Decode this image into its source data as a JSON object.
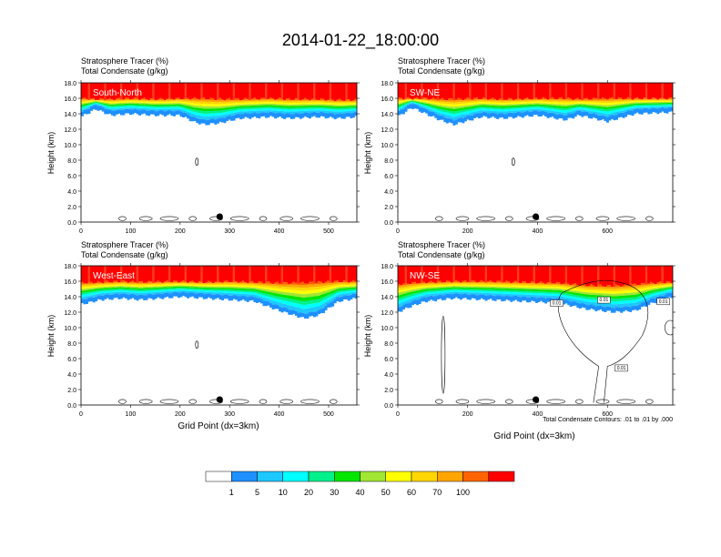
{
  "title": "2014-01-22_18:00:00",
  "field_label": "Stratosphere Tracer   (%)",
  "contour_label": "Total Condensate   (g/kg)",
  "ylabel": "Height (km)",
  "xlabel": "Grid Point (dx=3km)",
  "contour_note": "Total Condensate Contours: .01 to .01 by .000",
  "colorbar": {
    "colors": [
      "#ffffff",
      "#1e90ff",
      "#1ec8ff",
      "#00ffff",
      "#00f08c",
      "#00e600",
      "#a0e632",
      "#ffff00",
      "#ffd700",
      "#ffa500",
      "#ff6400",
      "#ff0000"
    ],
    "labels": [
      "1",
      "5",
      "10",
      "20",
      "30",
      "40",
      "50",
      "60",
      "70",
      "100"
    ]
  },
  "chart_data": [
    {
      "type": "heatmap",
      "panel": "South-North",
      "xlim": [
        0,
        557
      ],
      "ylim": [
        0,
        18
      ],
      "xticks": [
        0,
        100,
        200,
        300,
        400,
        500
      ],
      "yticks": [
        "0.0",
        "2.0",
        "4.0",
        "6.0",
        "8.0",
        "10.0",
        "12.0",
        "14.0",
        "16.0",
        "18.0"
      ],
      "profile": {
        "x": [
          0,
          30,
          60,
          100,
          150,
          200,
          230,
          250,
          280,
          320,
          380,
          420,
          480,
          520,
          557
        ],
        "tracer_100_base_km": [
          16.0,
          15.9,
          15.9,
          16.0,
          15.9,
          16.0,
          16.0,
          16.0,
          15.9,
          15.9,
          16.0,
          15.9,
          15.9,
          15.8,
          15.8
        ],
        "tracer_10_base_km": [
          14.2,
          15.2,
          14.4,
          14.6,
          14.4,
          14.4,
          13.5,
          13.2,
          13.4,
          14.0,
          14.2,
          14.0,
          14.2,
          14.0,
          14.2
        ]
      },
      "marker": {
        "x": 280,
        "y_km": 0.7
      }
    },
    {
      "type": "heatmap",
      "panel": "SW-NE",
      "xlim": [
        0,
        787
      ],
      "ylim": [
        0,
        18
      ],
      "xticks": [
        0,
        200,
        400,
        600
      ],
      "yticks": [
        "0.0",
        "2.0",
        "4.0",
        "6.0",
        "8.0",
        "10.0",
        "12.0",
        "14.0",
        "16.0",
        "18.0"
      ],
      "profile": {
        "x": [
          0,
          40,
          80,
          120,
          160,
          240,
          300,
          400,
          480,
          520,
          600,
          680,
          787
        ],
        "tracer_100_base_km": [
          16.0,
          16.0,
          16.0,
          15.9,
          15.9,
          16.0,
          15.9,
          16.0,
          16.0,
          15.9,
          16.0,
          16.0,
          16.0
        ],
        "tracer_10_base_km": [
          14.2,
          15.4,
          14.6,
          13.8,
          13.2,
          14.2,
          14.0,
          14.4,
          13.8,
          14.4,
          13.6,
          14.6,
          14.8
        ]
      },
      "marker": {
        "x": 395,
        "y_km": 0.7
      }
    },
    {
      "type": "heatmap",
      "panel": "West-East",
      "xlim": [
        0,
        557
      ],
      "ylim": [
        0,
        18
      ],
      "xticks": [
        0,
        100,
        200,
        300,
        400,
        500
      ],
      "yticks": [
        "0.0",
        "2.0",
        "4.0",
        "6.0",
        "8.0",
        "10.0",
        "12.0",
        "14.0",
        "16.0",
        "18.0"
      ],
      "profile": {
        "x": [
          0,
          40,
          80,
          120,
          200,
          250,
          300,
          350,
          400,
          450,
          480,
          520,
          557
        ],
        "tracer_100_base_km": [
          15.8,
          15.9,
          16.0,
          15.9,
          16.0,
          15.9,
          16.0,
          15.9,
          15.8,
          15.8,
          15.9,
          16.0,
          16.0
        ],
        "tracer_10_base_km": [
          13.6,
          14.2,
          14.4,
          14.2,
          14.6,
          14.4,
          14.2,
          14.0,
          12.8,
          11.8,
          12.2,
          14.0,
          14.4
        ]
      },
      "marker": {
        "x": 280,
        "y_km": 0.7
      }
    },
    {
      "type": "heatmap",
      "panel": "NW-SE",
      "xlim": [
        0,
        787
      ],
      "ylim": [
        0,
        18
      ],
      "xticks": [
        0,
        200,
        400,
        600
      ],
      "yticks": [
        "0.0",
        "2.0",
        "4.0",
        "6.0",
        "8.0",
        "10.0",
        "12.0",
        "14.0",
        "16.0",
        "18.0"
      ],
      "profile": {
        "x": [
          0,
          40,
          80,
          160,
          260,
          360,
          460,
          540,
          620,
          680,
          730,
          787
        ],
        "tracer_100_base_km": [
          15.6,
          15.8,
          15.9,
          16.0,
          16.0,
          15.9,
          15.8,
          15.5,
          15.4,
          15.6,
          15.8,
          15.9
        ],
        "tracer_10_base_km": [
          12.6,
          13.4,
          14.0,
          14.4,
          14.2,
          14.0,
          13.8,
          13.0,
          12.6,
          12.8,
          13.8,
          14.6
        ]
      },
      "marker": {
        "x": 395,
        "y_km": 0.7
      },
      "contour_labels": [
        "0.01",
        "0.01",
        "0.01",
        "0.01"
      ]
    }
  ]
}
